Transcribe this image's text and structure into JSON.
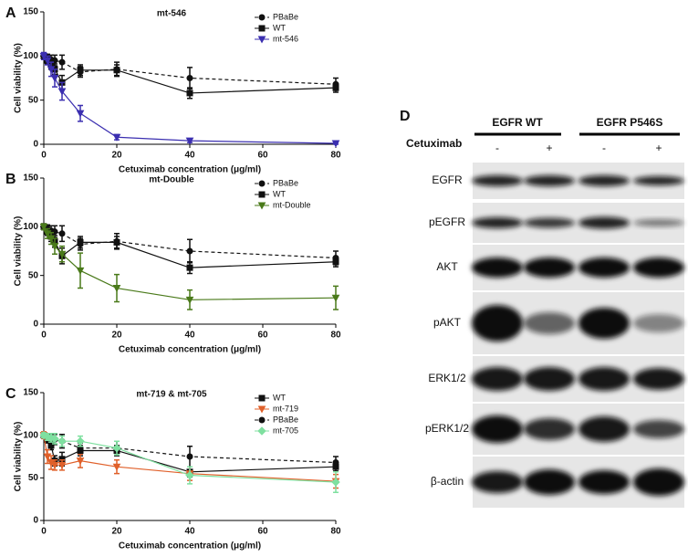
{
  "chart_data": [
    {
      "type": "line",
      "label": "A",
      "title": "mt-546",
      "xlabel": "Cetuximab concentration (μg/ml)",
      "ylabel": "Cell viability (%)",
      "x": [
        0,
        1,
        2,
        3,
        5,
        10,
        20,
        40,
        80
      ],
      "xlim": [
        0,
        80
      ],
      "xticks": [
        0,
        20,
        40,
        60,
        80
      ],
      "ylim": [
        0,
        150
      ],
      "yticks": [
        0,
        50,
        100,
        150
      ],
      "legend": "upper right",
      "series": [
        {
          "name": "PBaBe",
          "color": "#111111",
          "marker": "circle",
          "linestyle": "dashed",
          "values": [
            100,
            98,
            96,
            95,
            93,
            82,
            85,
            75,
            68
          ],
          "errors": [
            3,
            4,
            5,
            6,
            8,
            6,
            8,
            12,
            7
          ]
        },
        {
          "name": "WT",
          "color": "#111111",
          "marker": "square",
          "linestyle": "solid",
          "values": [
            100,
            95,
            90,
            85,
            70,
            84,
            84,
            58,
            64
          ],
          "errors": [
            3,
            4,
            5,
            6,
            8,
            6,
            6,
            6,
            5
          ]
        },
        {
          "name": "mt-546",
          "color": "#3b2fb0",
          "marker": "triangle",
          "linestyle": "solid",
          "values": [
            100,
            95,
            85,
            75,
            60,
            35,
            8,
            4,
            1
          ],
          "errors": [
            4,
            5,
            8,
            10,
            10,
            9,
            3,
            2,
            1
          ]
        }
      ]
    },
    {
      "type": "line",
      "label": "B",
      "title": "mt-Double",
      "xlabel": "Cetuximab concentration (μg/ml)",
      "ylabel": "Cell viability (%)",
      "x": [
        0,
        1,
        2,
        3,
        5,
        10,
        20,
        40,
        80
      ],
      "xlim": [
        0,
        80
      ],
      "xticks": [
        0,
        20,
        40,
        60,
        80
      ],
      "ylim": [
        0,
        150
      ],
      "yticks": [
        0,
        50,
        100,
        150
      ],
      "legend": "upper right",
      "series": [
        {
          "name": "PBaBe",
          "color": "#111111",
          "marker": "circle",
          "linestyle": "dashed",
          "values": [
            100,
            98,
            96,
            95,
            93,
            82,
            85,
            75,
            68
          ],
          "errors": [
            3,
            4,
            5,
            6,
            8,
            6,
            8,
            12,
            7
          ]
        },
        {
          "name": "WT",
          "color": "#111111",
          "marker": "square",
          "linestyle": "solid",
          "values": [
            100,
            95,
            90,
            85,
            70,
            84,
            84,
            58,
            64
          ],
          "errors": [
            3,
            4,
            5,
            6,
            8,
            6,
            6,
            6,
            5
          ]
        },
        {
          "name": "mt-Double",
          "color": "#4a7a1a",
          "marker": "triangle",
          "linestyle": "solid",
          "values": [
            100,
            93,
            88,
            80,
            72,
            55,
            37,
            25,
            27
          ],
          "errors": [
            3,
            5,
            6,
            8,
            8,
            18,
            14,
            10,
            12
          ]
        }
      ]
    },
    {
      "type": "line",
      "label": "C",
      "title": "mt-719 & mt-705",
      "xlabel": "Cetuximab concentration (μg/ml)",
      "ylabel": "Cell viability (%)",
      "x": [
        0,
        1,
        2,
        3,
        5,
        10,
        20,
        40,
        80
      ],
      "xlim": [
        0,
        80
      ],
      "xticks": [
        0,
        20,
        40,
        60,
        80
      ],
      "ylim": [
        0,
        150
      ],
      "yticks": [
        0,
        50,
        100,
        150
      ],
      "legend": "upper right",
      "series": [
        {
          "name": "WT",
          "color": "#111111",
          "marker": "square",
          "linestyle": "solid",
          "values": [
            100,
            95,
            88,
            70,
            72,
            82,
            82,
            57,
            63
          ],
          "errors": [
            3,
            4,
            5,
            6,
            8,
            6,
            6,
            6,
            5
          ]
        },
        {
          "name": "mt-719",
          "color": "#e0602a",
          "marker": "triangle",
          "linestyle": "solid",
          "values": [
            100,
            75,
            68,
            65,
            65,
            70,
            63,
            55,
            46
          ],
          "errors": [
            4,
            8,
            8,
            6,
            6,
            8,
            8,
            8,
            8
          ]
        },
        {
          "name": "PBaBe",
          "color": "#111111",
          "marker": "circle",
          "linestyle": "dashed",
          "values": [
            100,
            98,
            96,
            95,
            93,
            85,
            85,
            75,
            68
          ],
          "errors": [
            3,
            4,
            5,
            6,
            8,
            6,
            8,
            12,
            7
          ]
        },
        {
          "name": "mt-705",
          "color": "#7fe0a0",
          "marker": "diamond",
          "linestyle": "solid",
          "values": [
            100,
            98,
            97,
            96,
            93,
            93,
            85,
            53,
            45
          ],
          "errors": [
            3,
            4,
            5,
            6,
            6,
            6,
            8,
            10,
            12
          ]
        }
      ]
    }
  ],
  "blot": {
    "label": "D",
    "groups": [
      "EGFR WT",
      "EGFR P546S"
    ],
    "treatment": "Cetuximab",
    "lanes": [
      "-",
      "+",
      "-",
      "+"
    ],
    "rows": [
      "EGFR",
      "pEGFR",
      "AKT",
      "pAKT",
      "ERK1/2",
      "pERK1/2",
      "β-actin"
    ]
  }
}
